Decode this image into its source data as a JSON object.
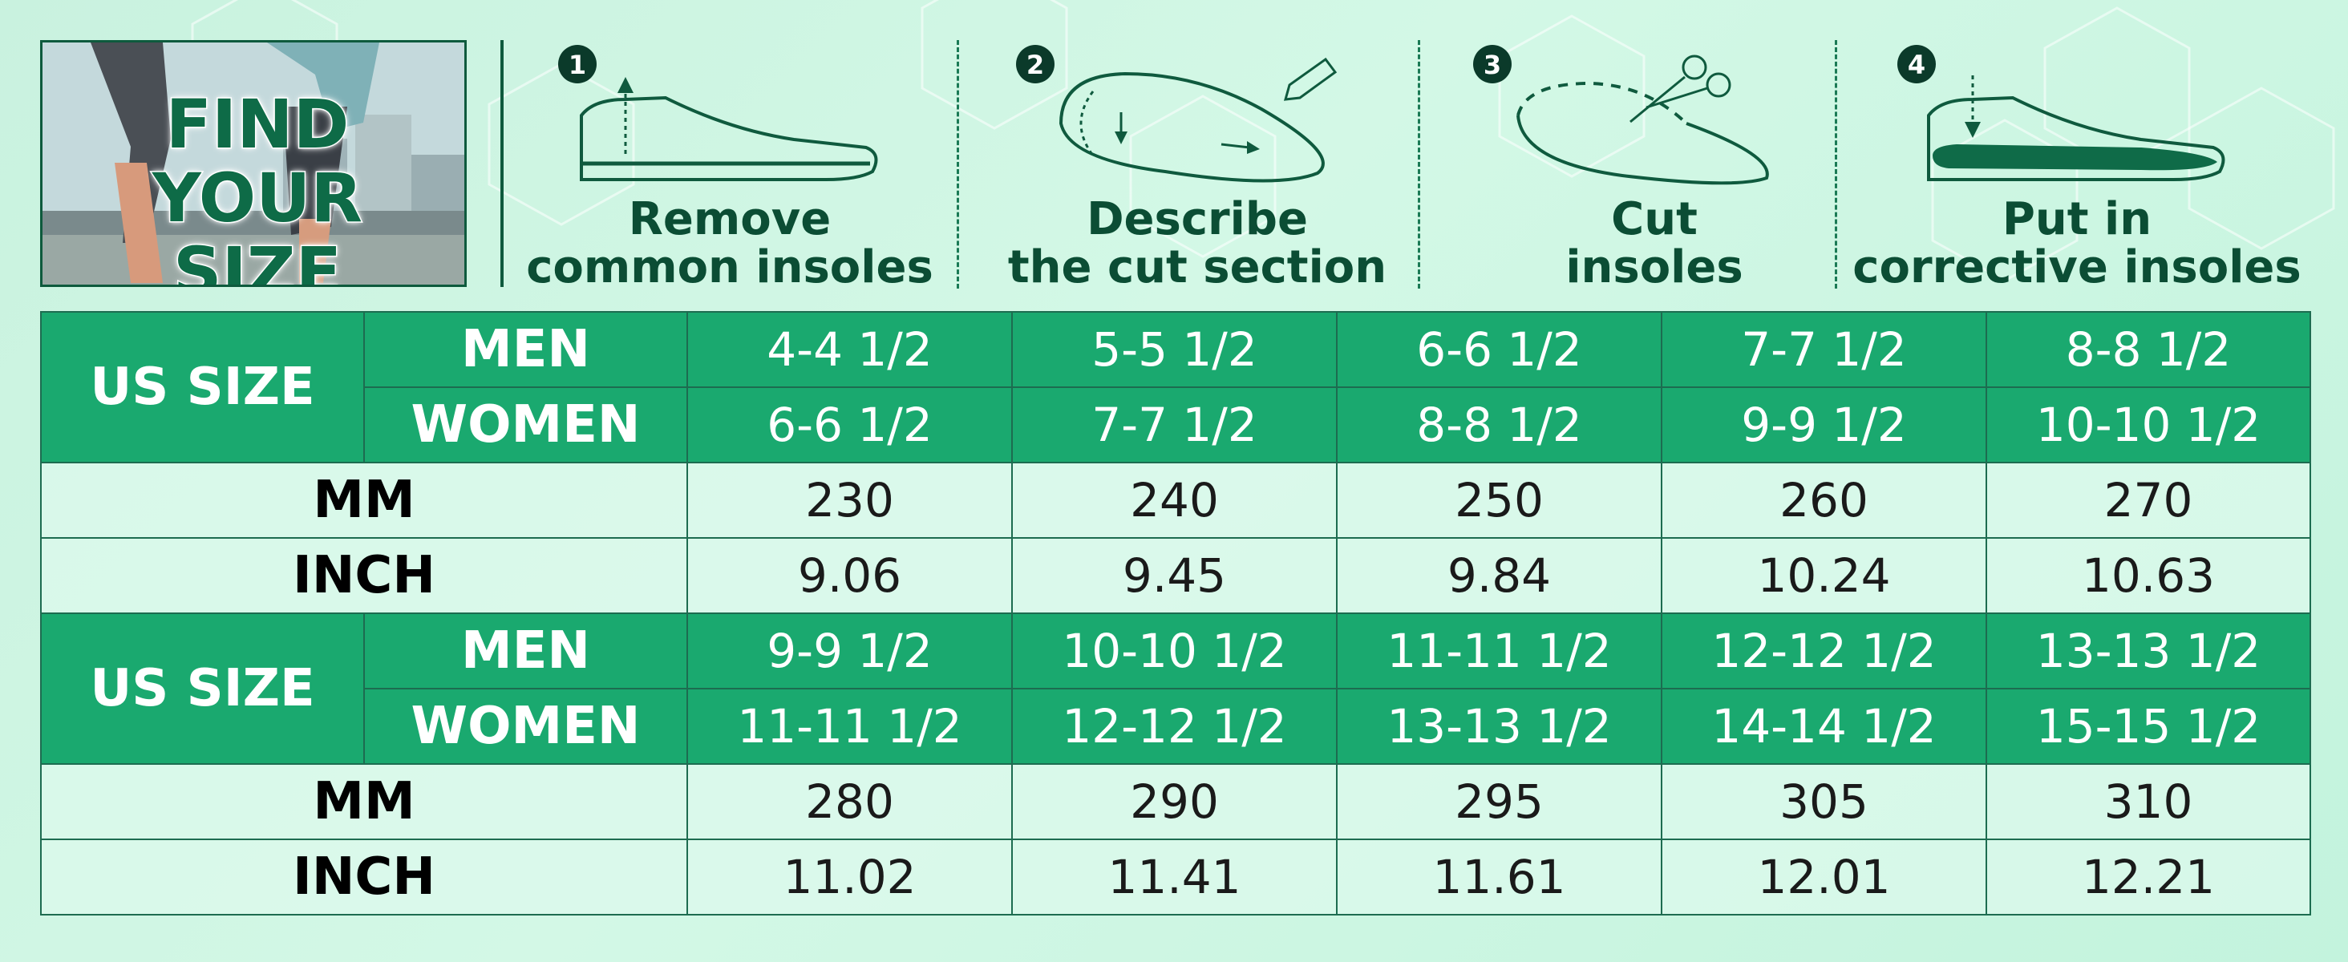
{
  "hero": {
    "title_line1": "FIND YOUR",
    "title_line2": "SIZE"
  },
  "steps": [
    {
      "number": "1",
      "line1": "Remove",
      "line2": "common insoles",
      "icon": "shoe-remove-insole-icon"
    },
    {
      "number": "2",
      "line1": "Describe",
      "line2": "the cut section",
      "icon": "insole-draw-icon"
    },
    {
      "number": "3",
      "line1": "Cut",
      "line2": "insoles",
      "icon": "scissors-cut-icon"
    },
    {
      "number": "4",
      "line1": "Put in",
      "line2": "corrective insoles",
      "icon": "shoe-insert-insole-icon"
    }
  ],
  "table": {
    "groups": [
      {
        "us_size_label": "US SIZE",
        "men_label": "MEN",
        "women_label": "WOMEN",
        "mm_label": "MM",
        "inch_label": "INCH",
        "men": [
          "4-4 1/2",
          "5-5 1/2",
          "6-6 1/2",
          "7-7 1/2",
          "8-8 1/2"
        ],
        "women": [
          "6-6 1/2",
          "7-7 1/2",
          "8-8 1/2",
          "9-9 1/2",
          "10-10 1/2"
        ],
        "mm": [
          "230",
          "240",
          "250",
          "260",
          "270"
        ],
        "inch": [
          "9.06",
          "9.45",
          "9.84",
          "10.24",
          "10.63"
        ]
      },
      {
        "us_size_label": "US SIZE",
        "men_label": "MEN",
        "women_label": "WOMEN",
        "mm_label": "MM",
        "inch_label": "INCH",
        "men": [
          "9-9 1/2",
          "10-10 1/2",
          "11-11 1/2",
          "12-12 1/2",
          "13-13 1/2"
        ],
        "women": [
          "11-11 1/2",
          "12-12 1/2",
          "13-13 1/2",
          "14-14 1/2",
          "15-15 1/2"
        ],
        "mm": [
          "280",
          "290",
          "295",
          "305",
          "310"
        ],
        "inch": [
          "11.02",
          "11.41",
          "11.61",
          "12.01",
          "12.21"
        ]
      }
    ]
  },
  "colors": {
    "green": "#1aa96f",
    "dark": "#0e5a3d",
    "background": "#cbf4e1"
  }
}
